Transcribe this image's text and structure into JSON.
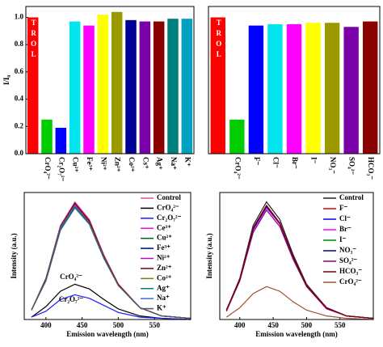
{
  "chart_data": [
    {
      "type": "bar",
      "ylabel": "I/I₀",
      "categories": [
        "CONTROL",
        "CrO₄²⁻",
        "Cr₂O₇²⁻",
        "Cu²⁺",
        "Fe³⁺",
        "Ni²⁺",
        "Zn²⁺",
        "Co²⁺",
        "Cs⁺",
        "Ag⁺",
        "Na⁺",
        "K⁺"
      ],
      "values": [
        1.0,
        0.25,
        0.19,
        0.97,
        0.94,
        1.02,
        1.04,
        0.98,
        0.97,
        0.97,
        0.99,
        0.99
      ],
      "colors": [
        "#ff0000",
        "#00cc00",
        "#0000ff",
        "#00e5ee",
        "#ff00ff",
        "#ffff00",
        "#9a9a00",
        "#000099",
        "#7a00a8",
        "#8b0000",
        "#007f7f",
        "#00a0c0"
      ],
      "ylim": [
        0,
        1.08
      ],
      "yticks": [
        {
          "value": 0,
          "label": "0.0"
        },
        0.2,
        0.4,
        0.6,
        0.8,
        {
          "value": 1,
          "label": "1.0"
        }
      ]
    },
    {
      "type": "bar",
      "categories": [
        "CONTROL",
        "CrO₄²⁻",
        "F⁻",
        "Cl⁻",
        "Br⁻",
        "I⁻",
        "NO₃⁻",
        "SO₄²⁻",
        "HCO₃⁻"
      ],
      "values": [
        1.0,
        0.25,
        0.94,
        0.95,
        0.95,
        0.96,
        0.96,
        0.93,
        0.97
      ],
      "colors": [
        "#ff0000",
        "#00cc00",
        "#0000ff",
        "#00e5ee",
        "#ff00ff",
        "#ffff00",
        "#9a9a00",
        "#7a00a8",
        "#8b0000"
      ],
      "ylim": [
        0,
        1.08
      ]
    },
    {
      "type": "line",
      "xlabel": "Emission wavelength (nm)",
      "ylabel": "Intensity (a.u.)",
      "x": [
        380,
        400,
        420,
        440,
        460,
        480,
        500,
        530,
        560,
        600
      ],
      "xlim": [
        370,
        600
      ],
      "xticks": [
        400,
        450,
        500,
        550
      ],
      "ylim": [
        0,
        1.08
      ],
      "series": [
        {
          "name": "Control",
          "color": "#e0509a",
          "values": [
            0.08,
            0.35,
            0.8,
            1.0,
            0.85,
            0.55,
            0.3,
            0.1,
            0.03,
            0.01
          ]
        },
        {
          "name": "CrO₄²⁻",
          "color": "#000000",
          "values": [
            0.02,
            0.11,
            0.24,
            0.3,
            0.26,
            0.17,
            0.09,
            0.03,
            0.01,
            0.0
          ]
        },
        {
          "name": "Cr₂O₇²⁻",
          "color": "#1a1aff",
          "values": [
            0.02,
            0.07,
            0.17,
            0.21,
            0.18,
            0.12,
            0.06,
            0.02,
            0.01,
            0.0
          ]
        },
        {
          "name": "Ce³⁺",
          "color": "#ff00ff",
          "values": [
            0.08,
            0.34,
            0.78,
            0.97,
            0.82,
            0.53,
            0.29,
            0.1,
            0.03,
            0.01
          ]
        },
        {
          "name": "Cu²⁺",
          "color": "#006400",
          "values": [
            0.08,
            0.34,
            0.77,
            0.96,
            0.82,
            0.53,
            0.29,
            0.1,
            0.03,
            0.01
          ]
        },
        {
          "name": "Fe³⁺",
          "color": "#000080",
          "values": [
            0.08,
            0.33,
            0.76,
            0.95,
            0.81,
            0.52,
            0.29,
            0.1,
            0.03,
            0.01
          ]
        },
        {
          "name": "Ni²⁺",
          "color": "#cc00cc",
          "values": [
            0.08,
            0.34,
            0.78,
            0.98,
            0.83,
            0.54,
            0.29,
            0.1,
            0.03,
            0.01
          ]
        },
        {
          "name": "Zn²⁺",
          "color": "#800000",
          "values": [
            0.08,
            0.35,
            0.79,
            0.99,
            0.84,
            0.54,
            0.3,
            0.1,
            0.03,
            0.01
          ]
        },
        {
          "name": "Co²⁺",
          "color": "#808000",
          "values": [
            0.08,
            0.34,
            0.77,
            0.96,
            0.82,
            0.53,
            0.29,
            0.1,
            0.03,
            0.01
          ]
        },
        {
          "name": "Ag⁺",
          "color": "#008080",
          "values": [
            0.08,
            0.33,
            0.76,
            0.95,
            0.81,
            0.52,
            0.29,
            0.1,
            0.03,
            0.01
          ]
        },
        {
          "name": "Na⁺",
          "color": "#4169e1",
          "values": [
            0.08,
            0.34,
            0.78,
            0.97,
            0.82,
            0.53,
            0.29,
            0.1,
            0.03,
            0.01
          ]
        },
        {
          "name": "K⁺",
          "color": "#555555",
          "values": [
            0.08,
            0.34,
            0.77,
            0.96,
            0.82,
            0.53,
            0.29,
            0.1,
            0.03,
            0.01
          ]
        }
      ],
      "annotations": [
        {
          "text": "CrO₄²⁻",
          "color": "#000000"
        },
        {
          "text": "Cr₂O₇²⁻",
          "color": "#1a1aff"
        }
      ]
    },
    {
      "type": "line",
      "xlabel": "Emission wavelength (nm)",
      "ylabel": "Intensity (a.u.)",
      "x": [
        380,
        400,
        420,
        440,
        460,
        480,
        500,
        530,
        560,
        600
      ],
      "xlim": [
        370,
        600
      ],
      "xticks": [
        400,
        450,
        500,
        550
      ],
      "ylim": [
        0,
        1.08
      ],
      "series": [
        {
          "name": "Control",
          "color": "#222222",
          "values": [
            0.08,
            0.35,
            0.8,
            1.0,
            0.85,
            0.55,
            0.3,
            0.1,
            0.03,
            0.01
          ]
        },
        {
          "name": "F⁻",
          "color": "#e00000",
          "values": [
            0.08,
            0.34,
            0.77,
            0.96,
            0.82,
            0.53,
            0.29,
            0.1,
            0.03,
            0.01
          ]
        },
        {
          "name": "Cl⁻",
          "color": "#0000e0",
          "values": [
            0.08,
            0.33,
            0.76,
            0.95,
            0.81,
            0.52,
            0.29,
            0.1,
            0.03,
            0.01
          ]
        },
        {
          "name": "Br⁻",
          "color": "#ff00ff",
          "values": [
            0.08,
            0.33,
            0.76,
            0.95,
            0.81,
            0.52,
            0.29,
            0.1,
            0.03,
            0.01
          ]
        },
        {
          "name": "I⁻",
          "color": "#008000",
          "values": [
            0.08,
            0.34,
            0.78,
            0.97,
            0.82,
            0.53,
            0.29,
            0.1,
            0.03,
            0.01
          ]
        },
        {
          "name": "NO₃⁻",
          "color": "#000080",
          "values": [
            0.08,
            0.34,
            0.77,
            0.96,
            0.82,
            0.53,
            0.29,
            0.1,
            0.03,
            0.01
          ]
        },
        {
          "name": "SO₄²⁻",
          "color": "#800080",
          "values": [
            0.07,
            0.33,
            0.74,
            0.93,
            0.79,
            0.51,
            0.28,
            0.09,
            0.03,
            0.01
          ]
        },
        {
          "name": "HCO₃⁻",
          "color": "#800000",
          "values": [
            0.08,
            0.34,
            0.78,
            0.97,
            0.82,
            0.53,
            0.29,
            0.1,
            0.03,
            0.01
          ]
        },
        {
          "name": "CrO₄²⁻",
          "color": "#a0522d",
          "values": [
            0.02,
            0.1,
            0.22,
            0.28,
            0.24,
            0.15,
            0.08,
            0.03,
            0.01,
            0.0
          ]
        }
      ]
    }
  ]
}
